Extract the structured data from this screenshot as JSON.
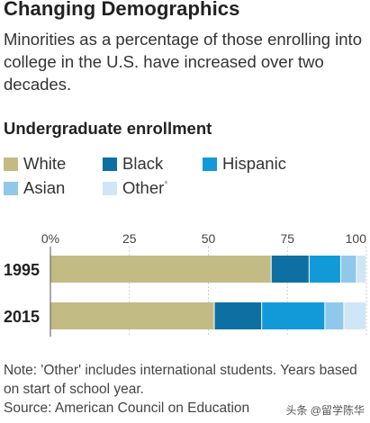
{
  "title": "Changing Demographics",
  "subtitle": "Minorities as a percentage of those enrolling into college in the U.S. have increased over two decades.",
  "section_title": "Undergraduate enrollment",
  "legend": [
    {
      "label": "White",
      "color": "#c2bb84",
      "note_mark": ""
    },
    {
      "label": "Black",
      "color": "#0e6fa3",
      "note_mark": ""
    },
    {
      "label": "Hispanic",
      "color": "#129ad8",
      "note_mark": ""
    },
    {
      "label": "Asian",
      "color": "#8fc8ea",
      "note_mark": ""
    },
    {
      "label": "Other",
      "color": "#cfe6f6",
      "note_mark": "*"
    }
  ],
  "chart_data": {
    "type": "bar",
    "orientation": "horizontal",
    "stacked": true,
    "categories": [
      "1995",
      "2015"
    ],
    "series": [
      {
        "name": "White",
        "values": [
          70,
          52
        ]
      },
      {
        "name": "Black",
        "values": [
          12,
          15
        ]
      },
      {
        "name": "Hispanic",
        "values": [
          10,
          20
        ]
      },
      {
        "name": "Asian",
        "values": [
          5,
          6
        ]
      },
      {
        "name": "Other",
        "values": [
          3,
          7
        ]
      }
    ],
    "xlim": [
      0,
      100
    ],
    "xticks": [
      0,
      25,
      50,
      75,
      100
    ],
    "xtick_labels": [
      "0%",
      "25",
      "50",
      "75",
      "100"
    ],
    "grid": true,
    "legend_position": "top"
  },
  "note": "Note: 'Other' includes international students. Years based on start of school year.",
  "source": "Source: American Council on Education",
  "watermark": "头条 @留学陈华"
}
